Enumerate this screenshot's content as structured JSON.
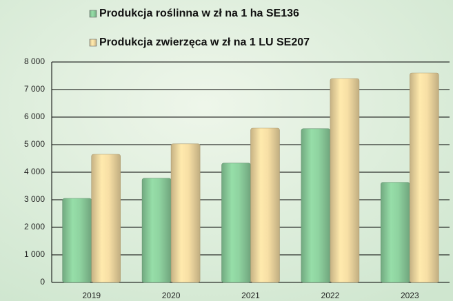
{
  "chart_data": {
    "type": "bar",
    "categories": [
      "2019",
      "2020",
      "2021",
      "2022",
      "2023"
    ],
    "series": [
      {
        "name": "Produkcja roślinna w zł na 1 ha SE136",
        "color": "#8fd3a0",
        "values": [
          3050,
          3780,
          4330,
          5580,
          3630
        ]
      },
      {
        "name": "Produkcja zwierzęca w zł na 1 LU SE207",
        "color": "#f7dfa5",
        "values": [
          4650,
          5030,
          5600,
          7400,
          7600
        ]
      }
    ],
    "ylim": [
      0,
      8000
    ],
    "yticks": [
      0,
      {
        "value": 1000,
        "label": "1 000"
      },
      {
        "value": 2000,
        "label": "2 000"
      },
      {
        "value": 3000,
        "label": "3 000"
      },
      {
        "value": 4000,
        "label": "4 000"
      },
      {
        "value": 5000,
        "label": "5 000"
      },
      {
        "value": 6000,
        "label": "6 000"
      },
      {
        "value": 7000,
        "label": "7 000"
      },
      {
        "value": 8000,
        "label": "8 000"
      }
    ],
    "grid": true,
    "legend": "top"
  }
}
